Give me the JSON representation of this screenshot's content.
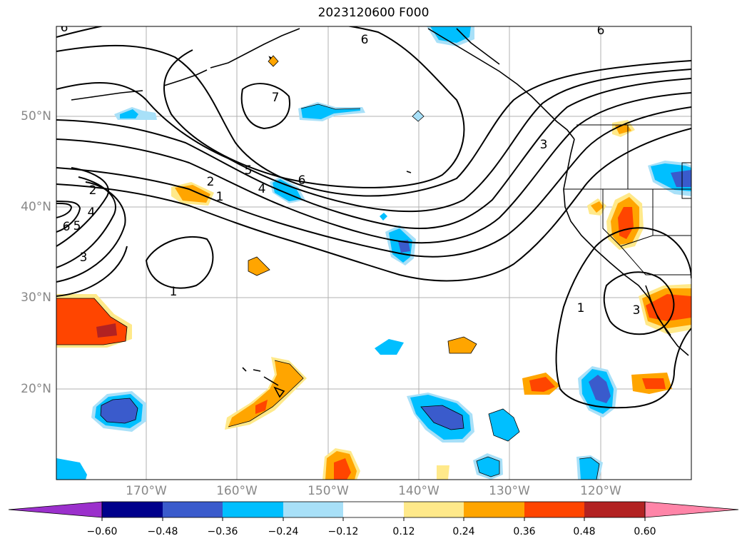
{
  "title": "2023120600 F000",
  "longitude_labels": [
    "170°W",
    "160°W",
    "150°W",
    "140°W",
    "130°W",
    "120°W"
  ],
  "latitude_labels": [
    "50°N",
    "40°N",
    "30°N",
    "20°N"
  ],
  "contour_labels": [
    "6",
    "6",
    "6",
    "7",
    "6",
    "5",
    "4",
    "2",
    "1",
    "3",
    "2",
    "4",
    "5",
    "6",
    "3",
    "1",
    "1",
    "3"
  ],
  "colorbar": {
    "ticks": [
      "−0.60",
      "−0.48",
      "−0.36",
      "−0.24",
      "−0.12",
      "0.12",
      "0.24",
      "0.36",
      "0.48",
      "0.60"
    ],
    "colors": [
      "#9b30cc",
      "#00008b",
      "#3a5bcc",
      "#00bfff",
      "#a8e0f8",
      "#ffffff",
      "#ffe98a",
      "#ffa500",
      "#ff4500",
      "#b22222",
      "#ff85a8"
    ]
  },
  "fill_colors": {
    "orange": "#ffa500",
    "red": "#ff4500",
    "dark_red": "#b22222",
    "yellow": "#ffe98a",
    "light_blue": "#a8e0f8",
    "blue": "#00bfff",
    "dark_blue": "#3a5bcc"
  }
}
